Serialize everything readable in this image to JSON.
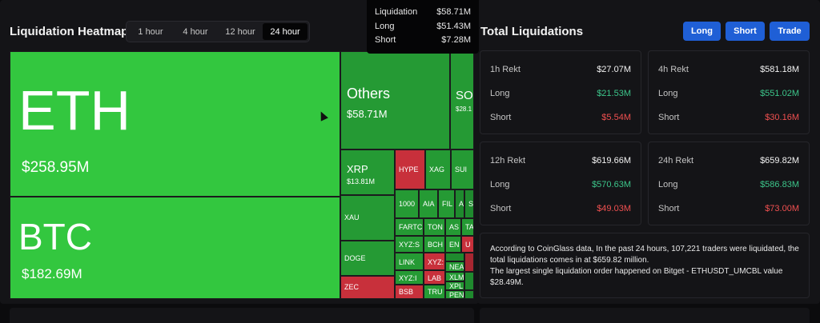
{
  "heatmap": {
    "title": "Liquidation Heatmap",
    "ranges": [
      "1 hour",
      "4 hour",
      "12 hour",
      "24 hour"
    ],
    "active_range": "24 hour",
    "tiles": {
      "eth": {
        "symbol": "ETH",
        "value": "$258.95M"
      },
      "btc": {
        "symbol": "BTC",
        "value": "$182.69M"
      },
      "others": {
        "symbol": "Others",
        "value": "$58.71M"
      },
      "sol": {
        "symbol": "SO",
        "value": "$28.1"
      },
      "xrp": {
        "symbol": "XRP",
        "value": "$13.81M"
      },
      "xau": "XAU",
      "doge": "DOGE",
      "zec": "ZEC",
      "hype": "HYPE",
      "xag": "XAG",
      "sui": "SUI",
      "t1000": "1000",
      "aia": "AIA",
      "fil": "FIL",
      "a": "A",
      "s": "S",
      "fartco": "FARTC",
      "ton": "TON",
      "as": "AS",
      "ta": "TA",
      "xyzs": "XYZ:S",
      "bch": "BCH",
      "en": "EN",
      "u": "U",
      "link": "LINK",
      "xyzx": "XYZ:",
      "nea": "NEA",
      "xyzi": "XYZ:I",
      "lab": "LAB",
      "xlm": "XLM",
      "xpl": "XPL",
      "bsb": "BSB",
      "tru": "TRU",
      "pen": "PEN"
    }
  },
  "tooltip": {
    "rows": [
      {
        "label": "Liquidation",
        "value": "$58.71M"
      },
      {
        "label": "Long",
        "value": "$51.43M"
      },
      {
        "label": "Short",
        "value": "$7.28M"
      }
    ]
  },
  "total": {
    "title": "Total Liquidations",
    "buttons": [
      "Long",
      "Short",
      "Trade"
    ],
    "cards": [
      {
        "title": "1h Rekt",
        "total": "$27.07M",
        "long_label": "Long",
        "long": "$21.53M",
        "short_label": "Short",
        "short": "$5.54M"
      },
      {
        "title": "4h Rekt",
        "total": "$581.18M",
        "long_label": "Long",
        "long": "$551.02M",
        "short_label": "Short",
        "short": "$30.16M"
      },
      {
        "title": "12h Rekt",
        "total": "$619.66M",
        "long_label": "Long",
        "long": "$570.63M",
        "short_label": "Short",
        "short": "$49.03M"
      },
      {
        "title": "24h Rekt",
        "total": "$659.82M",
        "long_label": "Long",
        "long": "$586.83M",
        "short_label": "Short",
        "short": "$73.00M"
      }
    ],
    "description_line1": "According to CoinGlass data, In the past 24 hours, 107,221 traders were liquidated, the total liquidations comes in at $659.82 million.",
    "description_line2": "The largest single liquidation order happened on Bitget - ETHUSDT_UMCBL value $28.49M."
  },
  "colors": {
    "accent_button": "#1f5fd6",
    "long_green": "#3cc58a",
    "short_red": "#f05050",
    "tile_green": "#33c73f",
    "tile_red": "#c8303b"
  },
  "icons": {
    "cursor": "mouse-pointer-icon"
  }
}
